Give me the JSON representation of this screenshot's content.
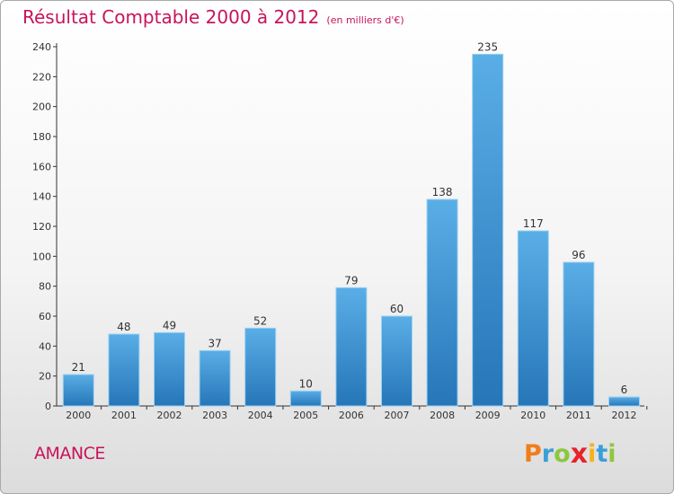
{
  "title": "Résultat Comptable 2000 à 2012",
  "subtitle": "(en milliers d'€)",
  "commune": "AMANCE",
  "logo": {
    "letters": [
      "P",
      "r",
      "o",
      "x",
      "i",
      "t",
      "i"
    ],
    "colors": [
      "#f07d1a",
      "#3a9fd8",
      "#8dc63f",
      "#e8232a",
      "#f7b21b",
      "#3a9fd8",
      "#8dc63f"
    ]
  },
  "colors": {
    "accent": "#c8145a",
    "bar_light": "#5aaee6",
    "bar_dark": "#2676b8"
  },
  "chart_data": {
    "type": "bar",
    "title": "Résultat Comptable 2000 à 2012",
    "subtitle": "(en milliers d'€)",
    "categories": [
      "2000",
      "2001",
      "2002",
      "2003",
      "2004",
      "2005",
      "2006",
      "2007",
      "2008",
      "2009",
      "2010",
      "2011",
      "2012"
    ],
    "values": [
      21,
      48,
      49,
      37,
      52,
      10,
      79,
      60,
      138,
      235,
      117,
      96,
      6
    ],
    "ylim": [
      0,
      240
    ],
    "yticks": [
      0,
      20,
      40,
      60,
      80,
      100,
      120,
      140,
      160,
      180,
      200,
      220,
      240
    ],
    "xlabel": "",
    "ylabel": "",
    "grid": false,
    "legend": "none"
  }
}
